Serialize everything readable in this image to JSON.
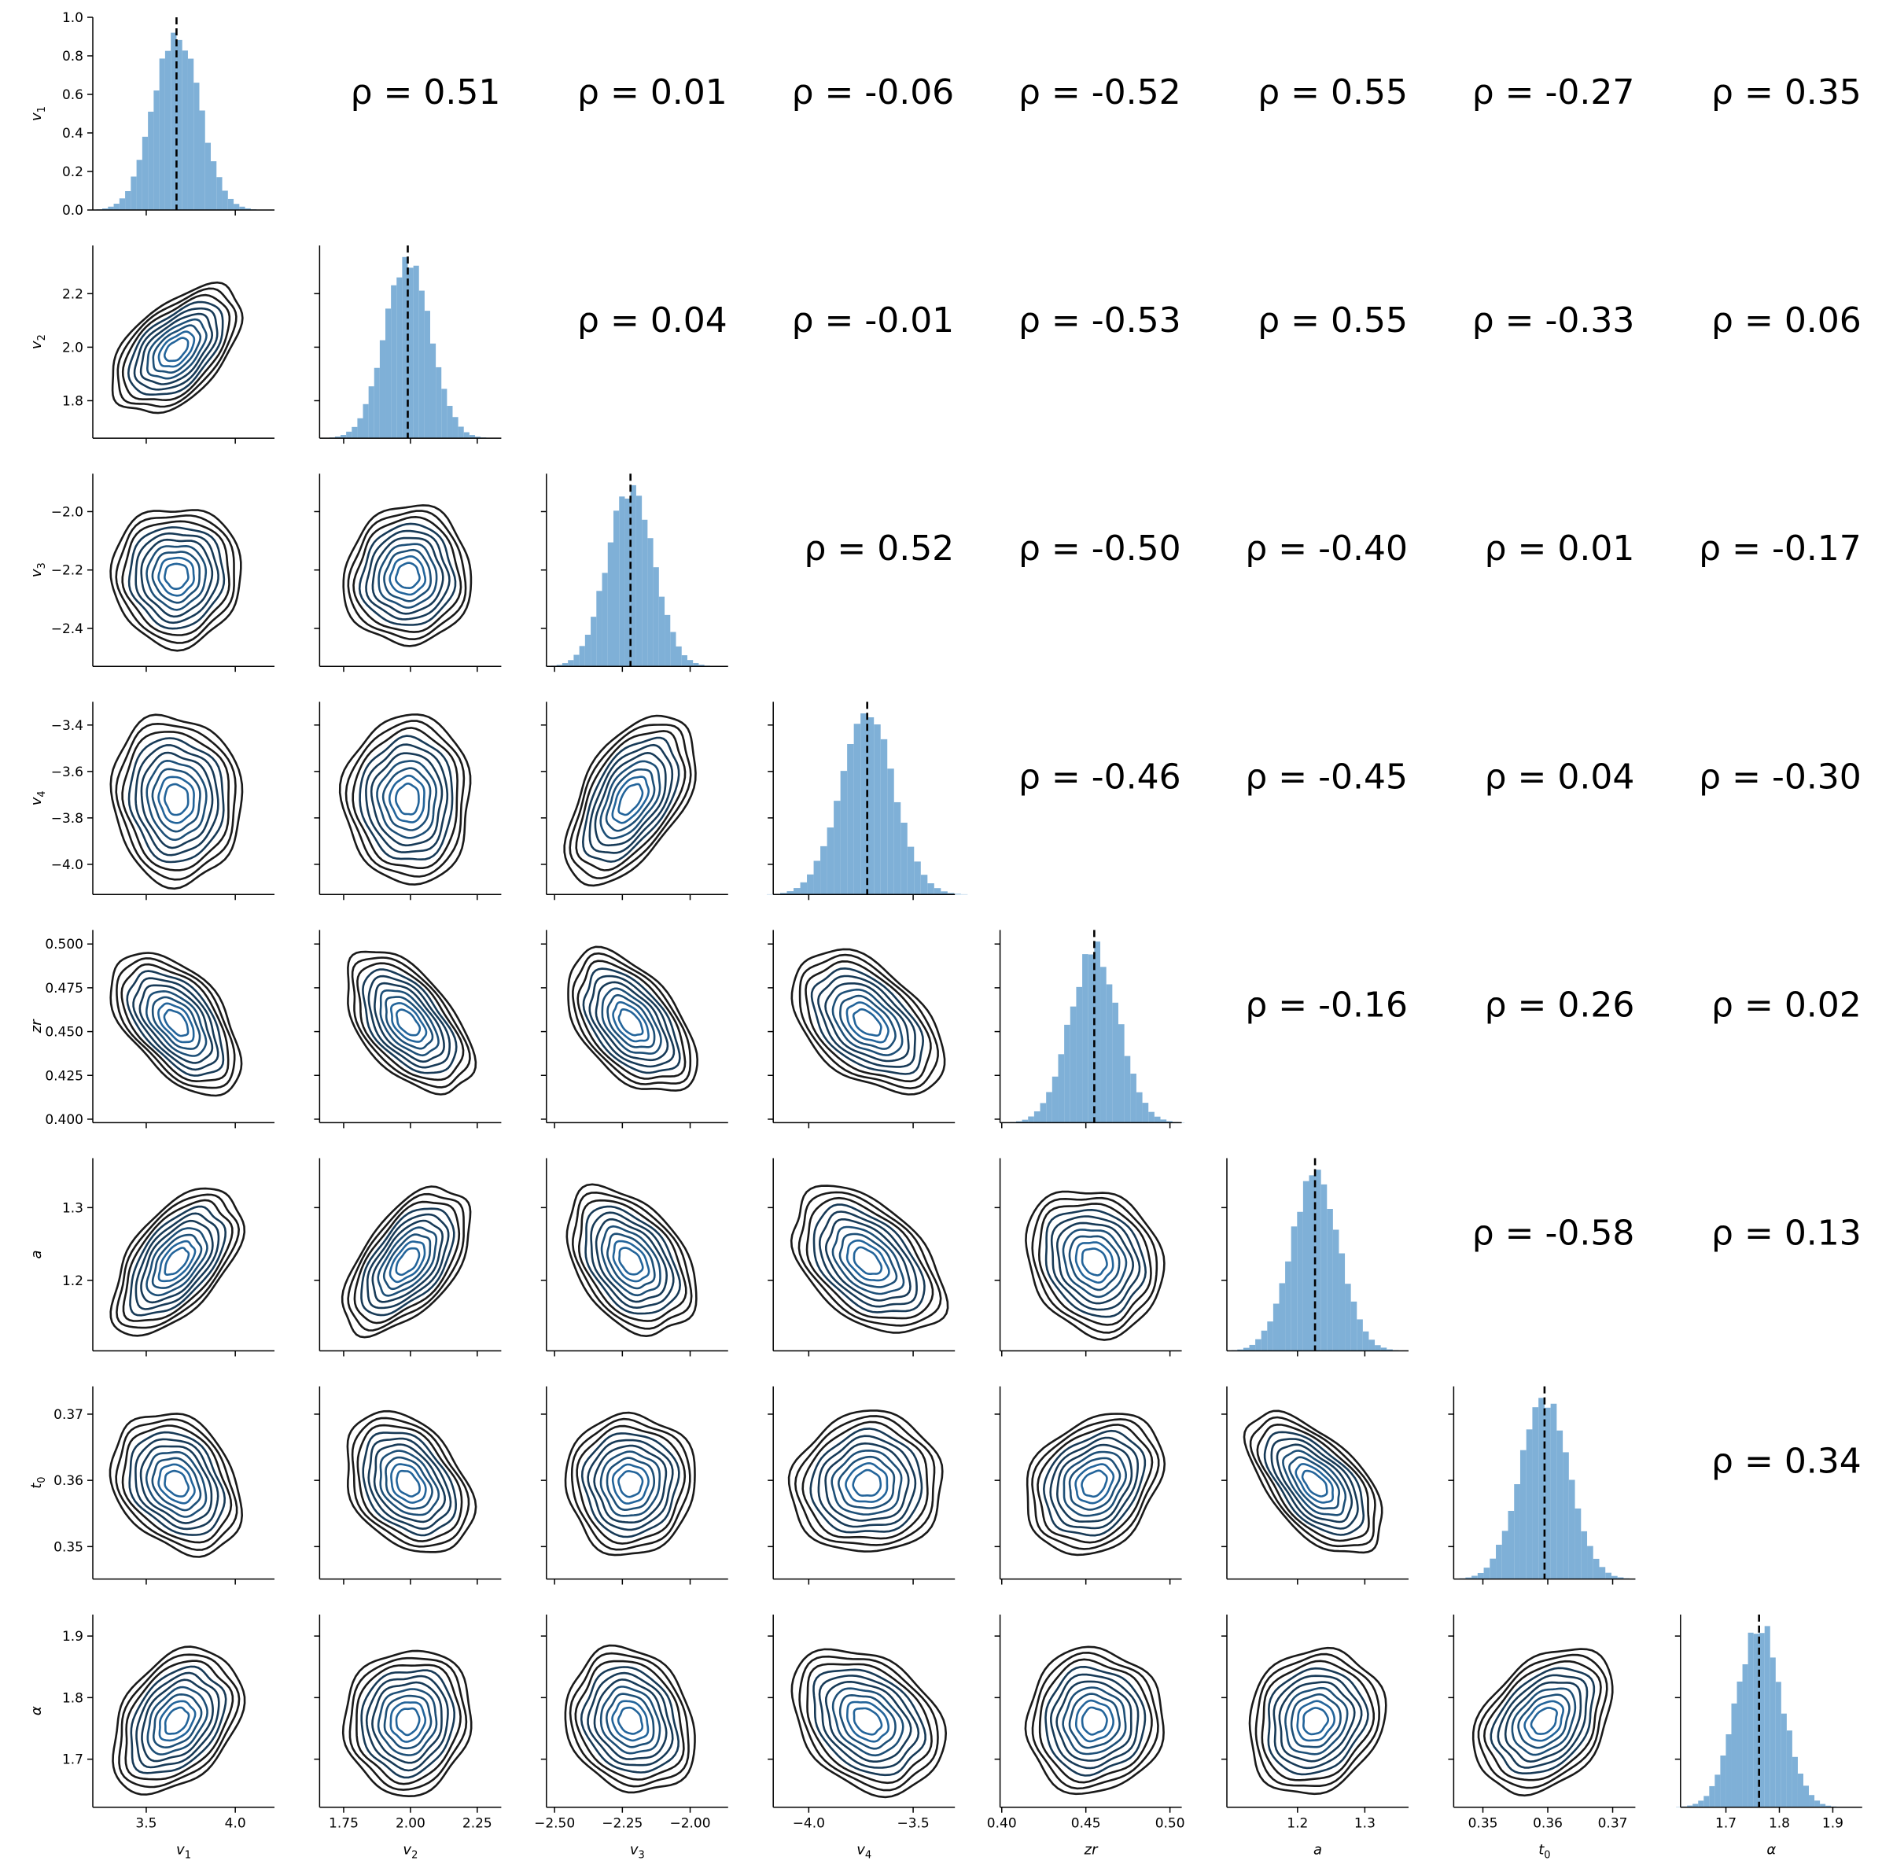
{
  "chart_data": {
    "type": "pairplot",
    "variables": [
      {
        "key": "v1",
        "label": "v",
        "sub": "1",
        "mean": 3.67,
        "sd": 0.13,
        "ticks": [
          3.5,
          4.0
        ],
        "tick_labels": [
          "3.5",
          "4.0"
        ],
        "range": [
          3.2,
          4.22
        ]
      },
      {
        "key": "v2",
        "label": "v",
        "sub": "2",
        "mean": 1.99,
        "sd": 0.085,
        "ticks": [
          1.75,
          2.0,
          2.25
        ],
        "tick_labels": [
          "1.75",
          "2.00",
          "2.25"
        ],
        "range": [
          1.66,
          2.34
        ]
      },
      {
        "key": "v3",
        "label": "v",
        "sub": "3",
        "mean": -2.22,
        "sd": 0.085,
        "ticks": [
          -2.5,
          -2.25,
          -2.0
        ],
        "tick_labels": [
          "−2.50",
          "−2.25",
          "−2.00"
        ],
        "range": [
          -2.53,
          -1.86
        ]
      },
      {
        "key": "v4",
        "label": "v",
        "sub": "4",
        "mean": -3.72,
        "sd": 0.13,
        "ticks": [
          -4.0,
          -3.5
        ],
        "tick_labels": [
          "−4.0",
          "−3.5"
        ],
        "range": [
          -4.17,
          -3.3
        ]
      },
      {
        "key": "zr",
        "label": "zr",
        "sub": "",
        "mean": 0.455,
        "sd": 0.0145,
        "ticks": [
          0.4,
          0.45,
          0.5
        ],
        "tick_labels": [
          "0.40",
          "0.45",
          "0.50"
        ],
        "range": [
          0.399,
          0.507
        ]
      },
      {
        "key": "a",
        "label": "a",
        "sub": "",
        "mean": 1.226,
        "sd": 0.036,
        "ticks": [
          1.2,
          1.3
        ],
        "tick_labels": [
          "1.2",
          "1.3"
        ],
        "range": [
          1.095,
          1.365
        ]
      },
      {
        "key": "t0",
        "label": "t",
        "sub": "0",
        "mean": 0.3595,
        "sd": 0.0038,
        "ticks": [
          0.35,
          0.36,
          0.37
        ],
        "tick_labels": [
          "0.35",
          "0.36",
          "0.37"
        ],
        "range": [
          0.3455,
          0.3735
        ]
      },
      {
        "key": "alpha",
        "label": "α",
        "sub": "",
        "mean": 1.762,
        "sd": 0.042,
        "ticks": [
          1.7,
          1.8,
          1.9
        ],
        "tick_labels": [
          "1.7",
          "1.8",
          "1.9"
        ],
        "range": [
          1.615,
          1.955
        ]
      }
    ],
    "y_axes": [
      {
        "var": "v1",
        "ticks": [
          0.0,
          0.2,
          0.4,
          0.6,
          0.8,
          1.0
        ],
        "tick_labels": [
          "0.0",
          "0.2",
          "0.4",
          "0.6",
          "0.8",
          "1.0"
        ],
        "range": [
          0.0,
          1.0
        ]
      },
      {
        "var": "v2",
        "ticks": [
          1.8,
          2.0,
          2.2
        ],
        "tick_labels": [
          "1.8",
          "2.0",
          "2.2"
        ],
        "range": [
          1.66,
          2.38
        ]
      },
      {
        "var": "v3",
        "ticks": [
          -2.4,
          -2.2,
          -2.0
        ],
        "tick_labels": [
          "−2.4",
          "−2.2",
          "−2.0"
        ],
        "range": [
          -2.53,
          -1.87
        ]
      },
      {
        "var": "v4",
        "ticks": [
          -4.0,
          -3.8,
          -3.6,
          -3.4
        ],
        "tick_labels": [
          "−4.0",
          "−3.8",
          "−3.6",
          "−3.4"
        ],
        "range": [
          -4.13,
          -3.3
        ]
      },
      {
        "var": "zr",
        "ticks": [
          0.4,
          0.425,
          0.45,
          0.475,
          0.5
        ],
        "tick_labels": [
          "0.400",
          "0.425",
          "0.450",
          "0.475",
          "0.500"
        ],
        "range": [
          0.398,
          0.508
        ]
      },
      {
        "var": "a",
        "ticks": [
          1.2,
          1.3
        ],
        "tick_labels": [
          "1.2",
          "1.3"
        ],
        "range": [
          1.103,
          1.368
        ]
      },
      {
        "var": "t0",
        "ticks": [
          0.35,
          0.36,
          0.37
        ],
        "tick_labels": [
          "0.35",
          "0.36",
          "0.37"
        ],
        "range": [
          0.3451,
          0.3742
        ]
      },
      {
        "var": "alpha",
        "ticks": [
          1.7,
          1.8,
          1.9
        ],
        "tick_labels": [
          "1.7",
          "1.8",
          "1.9"
        ],
        "range": [
          1.622,
          1.935
        ]
      }
    ],
    "histogram_bins": 30,
    "histogram_color": "#7fb0d7",
    "contour_colors": [
      "#1a1a1a",
      "#173a57",
      "#1d4f77",
      "#23649a"
    ],
    "mean_line_style": "dashed black",
    "correlations": [
      {
        "row": 0,
        "col": 1,
        "rho": 0.51,
        "text": "ρ = 0.51"
      },
      {
        "row": 0,
        "col": 2,
        "rho": 0.01,
        "text": "ρ = 0.01"
      },
      {
        "row": 0,
        "col": 3,
        "rho": -0.06,
        "text": "ρ = -0.06"
      },
      {
        "row": 0,
        "col": 4,
        "rho": -0.52,
        "text": "ρ = -0.52"
      },
      {
        "row": 0,
        "col": 5,
        "rho": 0.55,
        "text": "ρ = 0.55"
      },
      {
        "row": 0,
        "col": 6,
        "rho": -0.27,
        "text": "ρ = -0.27"
      },
      {
        "row": 0,
        "col": 7,
        "rho": 0.35,
        "text": "ρ = 0.35"
      },
      {
        "row": 1,
        "col": 2,
        "rho": 0.04,
        "text": "ρ = 0.04"
      },
      {
        "row": 1,
        "col": 3,
        "rho": -0.01,
        "text": "ρ = -0.01"
      },
      {
        "row": 1,
        "col": 4,
        "rho": -0.53,
        "text": "ρ = -0.53"
      },
      {
        "row": 1,
        "col": 5,
        "rho": 0.55,
        "text": "ρ = 0.55"
      },
      {
        "row": 1,
        "col": 6,
        "rho": -0.33,
        "text": "ρ = -0.33"
      },
      {
        "row": 1,
        "col": 7,
        "rho": 0.06,
        "text": "ρ = 0.06"
      },
      {
        "row": 2,
        "col": 3,
        "rho": 0.52,
        "text": "ρ = 0.52"
      },
      {
        "row": 2,
        "col": 4,
        "rho": -0.5,
        "text": "ρ = -0.50"
      },
      {
        "row": 2,
        "col": 5,
        "rho": -0.4,
        "text": "ρ = -0.40"
      },
      {
        "row": 2,
        "col": 6,
        "rho": 0.01,
        "text": "ρ = 0.01"
      },
      {
        "row": 2,
        "col": 7,
        "rho": -0.17,
        "text": "ρ = -0.17"
      },
      {
        "row": 3,
        "col": 4,
        "rho": -0.46,
        "text": "ρ = -0.46"
      },
      {
        "row": 3,
        "col": 5,
        "rho": -0.45,
        "text": "ρ = -0.45"
      },
      {
        "row": 3,
        "col": 6,
        "rho": 0.04,
        "text": "ρ = 0.04"
      },
      {
        "row": 3,
        "col": 7,
        "rho": -0.3,
        "text": "ρ = -0.30"
      },
      {
        "row": 4,
        "col": 5,
        "rho": -0.16,
        "text": "ρ = -0.16"
      },
      {
        "row": 4,
        "col": 6,
        "rho": 0.26,
        "text": "ρ = 0.26"
      },
      {
        "row": 4,
        "col": 7,
        "rho": 0.02,
        "text": "ρ = 0.02"
      },
      {
        "row": 5,
        "col": 6,
        "rho": -0.58,
        "text": "ρ = -0.58"
      },
      {
        "row": 5,
        "col": 7,
        "rho": 0.13,
        "text": "ρ = 0.13"
      },
      {
        "row": 6,
        "col": 7,
        "rho": 0.34,
        "text": "ρ = 0.34"
      }
    ]
  }
}
